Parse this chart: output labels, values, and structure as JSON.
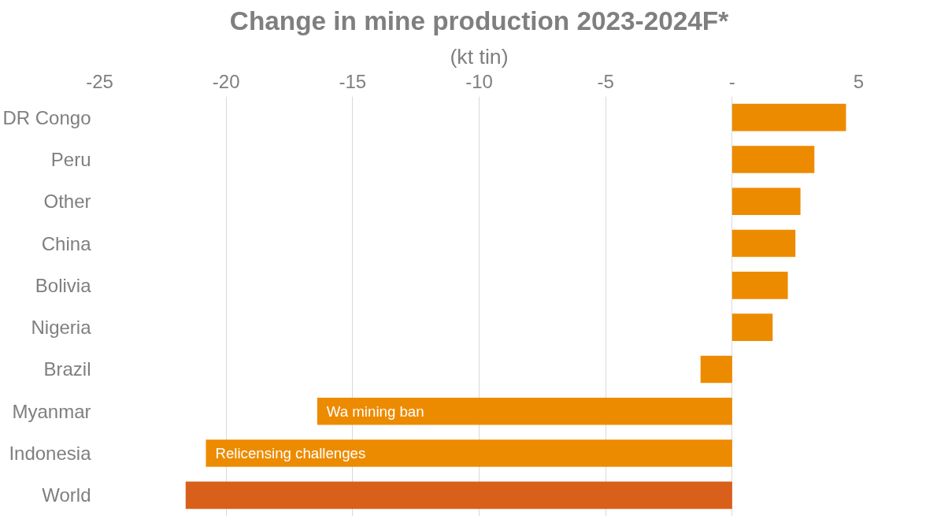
{
  "chart_data": {
    "type": "bar",
    "orientation": "horizontal",
    "title": "Change in mine production 2023-2024F*",
    "subtitle": "(kt tin)",
    "categories": [
      "DR Congo",
      "Peru",
      "Other",
      "China",
      "Bolivia",
      "Nigeria",
      "Brazil",
      "Myanmar",
      "Indonesia",
      "World"
    ],
    "values": [
      4.5,
      3.25,
      2.7,
      2.5,
      2.2,
      1.6,
      -1.25,
      -16.4,
      -20.8,
      -21.6
    ],
    "colors": [
      "#ed8b00",
      "#ed8b00",
      "#ed8b00",
      "#ed8b00",
      "#ed8b00",
      "#ed8b00",
      "#ed8b00",
      "#ed8b00",
      "#ed8b00",
      "#d9601a"
    ],
    "xlim": [
      -25,
      5
    ],
    "xticks": [
      -25,
      -20,
      -15,
      -10,
      -5,
      {
        "value": 0,
        "label": "-"
      },
      5
    ],
    "grid": "x",
    "annotations": [
      {
        "text": "Wa mining ban",
        "x": -16.4,
        "y": "Myanmar"
      },
      {
        "text": "Relicensing challenges",
        "x": -20.8,
        "y": "Indonesia"
      }
    ]
  }
}
